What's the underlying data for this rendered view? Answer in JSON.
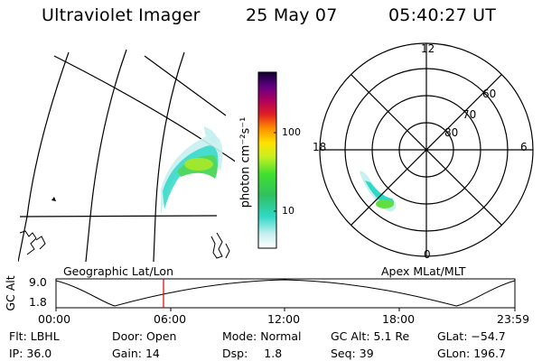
{
  "header": {
    "title": "Ultraviolet Imager",
    "date": "25 May 07",
    "time": "05:40:27 UT"
  },
  "geo_panel": {
    "label": "Geographic Lat/Lon"
  },
  "apex_panel": {
    "label": "Apex MLat/MLT",
    "mlt_labels": [
      "12",
      "18",
      "6",
      "0"
    ],
    "lat_labels": [
      "60",
      "70",
      "80"
    ]
  },
  "colorbar": {
    "unit_label": "photon cm⁻²s⁻¹",
    "tick_labels": [
      "100",
      "10"
    ]
  },
  "gc_alt_plot": {
    "ylabel": "GC Alt",
    "y_ticks": [
      "9.0",
      "1.8"
    ],
    "x_ticks": [
      "00:00",
      "06:00",
      "12:00",
      "18:00",
      "23:59"
    ],
    "marker_time": "05:40"
  },
  "status": {
    "row1": [
      {
        "label": "Flt:",
        "value": "LBHL"
      },
      {
        "label": "Door:",
        "value": "Open"
      },
      {
        "label": "Mode:",
        "value": "Normal"
      },
      {
        "label": "GC Alt:",
        "value": "5.1 Re"
      },
      {
        "label": "GLat:",
        "value": "−54.7"
      }
    ],
    "row2": [
      {
        "label": "IP:",
        "value": "36.0"
      },
      {
        "label": "Gain:",
        "value": "14"
      },
      {
        "label": "Dsp:",
        "value": "1.8"
      },
      {
        "label": "Seq:",
        "value": "39"
      },
      {
        "label": "GLon:",
        "value": "196.7"
      }
    ]
  },
  "colors": {
    "marker": "#e00000",
    "background": "#ffffff",
    "lines": "#000000"
  }
}
